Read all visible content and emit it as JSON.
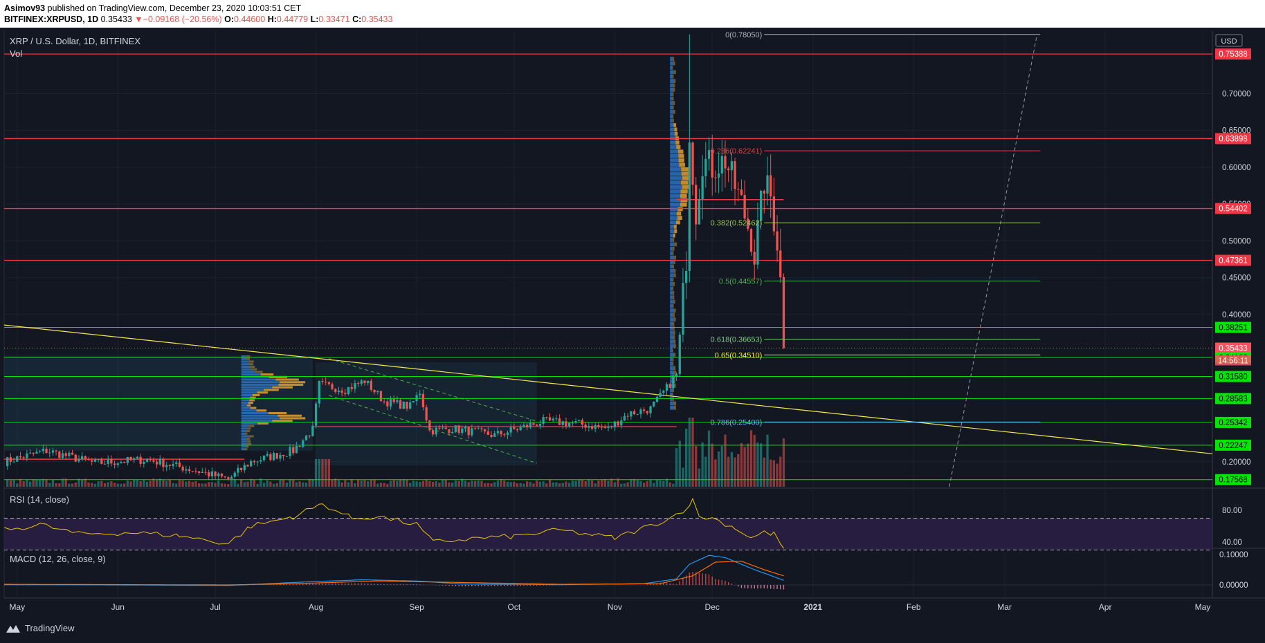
{
  "header": {
    "author": "Asimov93",
    "published": "published on TradingView.com, December 23, 2020 10:03:51 CET",
    "symbol": "BITFINEX:XRPUSD, 1D",
    "last": "0.35433",
    "change": "−0.09168 (−20.56%)",
    "open": "0.44600",
    "high": "0.44779",
    "low": "0.33471",
    "close": "0.35433"
  },
  "chart_data": {
    "type": "candlestick",
    "title": "XRP / U.S. Dollar, 1D, BITFINEX",
    "volume_label": "Vol",
    "currency": "USD",
    "x_ticks": [
      "May",
      "Jun",
      "Jul",
      "Aug",
      "Sep",
      "Oct",
      "Nov",
      "Dec",
      "2021",
      "Feb",
      "Mar",
      "Apr",
      "May"
    ],
    "x_range": [
      "2020-04-27",
      "2021-05-04"
    ],
    "y_range": [
      0.166,
      0.785
    ],
    "y_ticks": [
      "0.70000",
      "0.65000",
      "0.60000",
      "0.55000",
      "0.50000",
      "0.45000",
      "0.40000",
      "0.20000"
    ],
    "price_labels": [
      {
        "value": 0.75388,
        "label": "0.75388",
        "color": "#f23645"
      },
      {
        "value": 0.63898,
        "label": "0.63898",
        "color": "#f23645"
      },
      {
        "value": 0.54402,
        "label": "0.54402",
        "color": "#f23645"
      },
      {
        "value": 0.47361,
        "label": "0.47361",
        "color": "#f23645"
      },
      {
        "value": 0.38251,
        "label": "0.38251",
        "color": "#00e600"
      },
      {
        "value": 0.35433,
        "label": "0.35433",
        "color": "#f7525f"
      },
      {
        "value": 0.34163,
        "label": "0.34163",
        "color": "#00e600"
      },
      {
        "value": 0.3158,
        "label": "0.31580",
        "color": "#00e600"
      },
      {
        "value": 0.28583,
        "label": "0.28583",
        "color": "#00e600"
      },
      {
        "value": 0.25342,
        "label": "0.25342",
        "color": "#00e600"
      },
      {
        "value": 0.22247,
        "label": "0.22247",
        "color": "#00e600"
      },
      {
        "value": 0.17568,
        "label": "0.17568",
        "color": "#00e600"
      }
    ],
    "countdown": "14:56:11",
    "resistance_lines": [
      0.75388,
      0.63898,
      0.54402,
      0.47361
    ],
    "support_lines": [
      0.38251,
      0.34163,
      0.3158,
      0.28583,
      0.25342,
      0.22247,
      0.17568
    ],
    "fibonacci": [
      {
        "level": "0",
        "value": 0.7805,
        "label": "0(0.78050)",
        "color": "#b2b5be"
      },
      {
        "level": "0.236",
        "value": 0.62241,
        "label": "0.236(0.62241)",
        "color": "#f23645"
      },
      {
        "level": "0.382",
        "value": 0.52462,
        "label": "0.382(0.52462)",
        "color": "#9ccc45"
      },
      {
        "level": "0.5",
        "value": 0.44557,
        "label": "0.5(0.44557)",
        "color": "#4caf50"
      },
      {
        "level": "0.618",
        "value": 0.36653,
        "label": "0.618(0.36653)",
        "color": "#81c784"
      },
      {
        "level": "0.65",
        "value": 0.3451,
        "label": "0.65(0.34510)",
        "color": "#ffeb3b"
      },
      {
        "level": "0.786",
        "value": 0.254,
        "label": "0.786(0.25400)",
        "color": "#64b5f6"
      }
    ],
    "trendline": {
      "from": [
        "2020-04-27",
        0.3857
      ],
      "to": [
        "2021-05-04",
        0.2108
      ]
    },
    "anchors": [
      [
        "2020-04-27",
        0.2
      ],
      [
        "2020-05-10",
        0.215
      ],
      [
        "2020-05-25",
        0.198
      ],
      [
        "2020-06-10",
        0.203
      ],
      [
        "2020-06-25",
        0.188
      ],
      [
        "2020-07-05",
        0.176
      ],
      [
        "2020-07-12",
        0.2
      ],
      [
        "2020-07-25",
        0.215
      ],
      [
        "2020-07-31",
        0.244
      ],
      [
        "2020-08-02",
        0.305
      ],
      [
        "2020-08-10",
        0.298
      ],
      [
        "2020-08-16",
        0.31
      ],
      [
        "2020-08-22",
        0.282
      ],
      [
        "2020-08-30",
        0.275
      ],
      [
        "2020-09-02",
        0.295
      ],
      [
        "2020-09-05",
        0.242
      ],
      [
        "2020-09-12",
        0.245
      ],
      [
        "2020-09-25",
        0.236
      ],
      [
        "2020-09-30",
        0.242
      ],
      [
        "2020-10-10",
        0.255
      ],
      [
        "2020-10-20",
        0.252
      ],
      [
        "2020-10-30",
        0.245
      ],
      [
        "2020-11-05",
        0.265
      ],
      [
        "2020-11-12",
        0.272
      ],
      [
        "2020-11-17",
        0.3
      ],
      [
        "2020-11-20",
        0.318
      ],
      [
        "2020-11-21",
        0.37
      ],
      [
        "2020-11-23",
        0.48
      ],
      [
        "2020-11-24",
        0.65
      ],
      [
        "2020-11-26",
        0.54
      ],
      [
        "2020-11-28",
        0.61
      ],
      [
        "2020-12-01",
        0.6
      ],
      [
        "2020-12-05",
        0.61
      ],
      [
        "2020-12-10",
        0.55
      ],
      [
        "2020-12-13",
        0.505
      ],
      [
        "2020-12-14",
        0.48
      ],
      [
        "2020-12-17",
        0.58
      ],
      [
        "2020-12-19",
        0.56
      ],
      [
        "2020-12-21",
        0.5
      ],
      [
        "2020-12-22",
        0.446
      ],
      [
        "2020-12-23",
        0.354
      ]
    ],
    "rsi": {
      "label": "RSI (14, close)",
      "y_ticks": [
        "80.00",
        "40.00"
      ],
      "upper": 70,
      "lower": 30,
      "anchors": [
        [
          "2020-04-27",
          55
        ],
        [
          "2020-05-08",
          62
        ],
        [
          "2020-05-20",
          50
        ],
        [
          "2020-06-05",
          52
        ],
        [
          "2020-06-20",
          48
        ],
        [
          "2020-07-05",
          38
        ],
        [
          "2020-07-12",
          60
        ],
        [
          "2020-07-25",
          72
        ],
        [
          "2020-08-03",
          88
        ],
        [
          "2020-08-12",
          70
        ],
        [
          "2020-08-20",
          72
        ],
        [
          "2020-09-01",
          62
        ],
        [
          "2020-09-06",
          40
        ],
        [
          "2020-09-20",
          45
        ],
        [
          "2020-10-01",
          47
        ],
        [
          "2020-10-15",
          55
        ],
        [
          "2020-11-01",
          45
        ],
        [
          "2020-11-10",
          58
        ],
        [
          "2020-11-18",
          70
        ],
        [
          "2020-11-22",
          80
        ],
        [
          "2020-11-25",
          92
        ],
        [
          "2020-11-27",
          72
        ],
        [
          "2020-12-01",
          70
        ],
        [
          "2020-12-08",
          58
        ],
        [
          "2020-12-13",
          45
        ],
        [
          "2020-12-17",
          52
        ],
        [
          "2020-12-20",
          50
        ],
        [
          "2020-12-23",
          32
        ]
      ]
    },
    "macd": {
      "label": "MACD (12, 26, close, 9)",
      "y_ticks": [
        "0.10000",
        "0.00000"
      ],
      "macd_anchors": [
        [
          "2020-04-27",
          0.001
        ],
        [
          "2020-06-01",
          0.0
        ],
        [
          "2020-07-05",
          -0.002
        ],
        [
          "2020-07-25",
          0.008
        ],
        [
          "2020-08-15",
          0.017
        ],
        [
          "2020-09-01",
          0.013
        ],
        [
          "2020-09-15",
          0.003
        ],
        [
          "2020-10-15",
          0.001
        ],
        [
          "2020-11-10",
          0.004
        ],
        [
          "2020-11-20",
          0.02
        ],
        [
          "2020-11-24",
          0.068
        ],
        [
          "2020-11-30",
          0.097
        ],
        [
          "2020-12-05",
          0.09
        ],
        [
          "2020-12-14",
          0.05
        ],
        [
          "2020-12-18",
          0.035
        ],
        [
          "2020-12-23",
          0.015
        ]
      ],
      "signal_anchors": [
        [
          "2020-04-27",
          0.002
        ],
        [
          "2020-06-01",
          0.001
        ],
        [
          "2020-07-05",
          0.0
        ],
        [
          "2020-07-25",
          0.004
        ],
        [
          "2020-08-20",
          0.013
        ],
        [
          "2020-09-10",
          0.009
        ],
        [
          "2020-10-15",
          0.002
        ],
        [
          "2020-11-15",
          0.004
        ],
        [
          "2020-11-25",
          0.03
        ],
        [
          "2020-12-02",
          0.075
        ],
        [
          "2020-12-10",
          0.078
        ],
        [
          "2020-12-17",
          0.05
        ],
        [
          "2020-12-23",
          0.03
        ]
      ]
    }
  }
}
